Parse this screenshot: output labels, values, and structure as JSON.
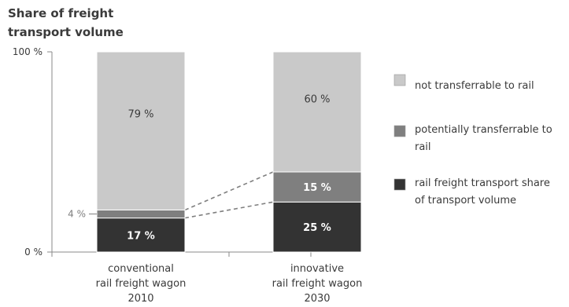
{
  "chart_data": {
    "type": "bar",
    "stacked": true,
    "title": "Share of freight transport volume",
    "title_lines": [
      "Share of freight",
      "transport volume"
    ],
    "ylabel": "",
    "ylim": [
      0,
      100
    ],
    "y_ticks": [
      {
        "value": 0,
        "label": "0 %"
      },
      {
        "value": 100,
        "label": "100 %"
      }
    ],
    "categories": [
      [
        "conventional",
        "rail freight wagon",
        "2010"
      ],
      [
        "innovative",
        "rail freight wagon",
        "2030"
      ]
    ],
    "series": [
      {
        "name": "rail freight transport share of transport volume",
        "legend_lines": [
          "rail freight transport share",
          "of transport volume"
        ],
        "values": [
          17,
          25
        ],
        "labels": [
          "17 %",
          "25 %"
        ],
        "color": "#333333",
        "label_color": "#ffffff"
      },
      {
        "name": "potentially transferrable to rail",
        "legend_lines": [
          "potentially transferrable to",
          "rail"
        ],
        "values": [
          4,
          15
        ],
        "labels": [
          "4 %",
          "15 %"
        ],
        "color": "#7f7f7f",
        "label_color": "#ffffff"
      },
      {
        "name": "not transferrable to rail",
        "legend_lines": [
          "not transferrable to rail"
        ],
        "values": [
          79,
          60
        ],
        "labels": [
          "79 %",
          "60 %"
        ],
        "color": "#c9c9c9",
        "label_color": "#3a3a3a"
      }
    ],
    "legend_placement": "right",
    "grid": false,
    "connector_lines": "dashed",
    "small_segment_label_outside": true
  }
}
